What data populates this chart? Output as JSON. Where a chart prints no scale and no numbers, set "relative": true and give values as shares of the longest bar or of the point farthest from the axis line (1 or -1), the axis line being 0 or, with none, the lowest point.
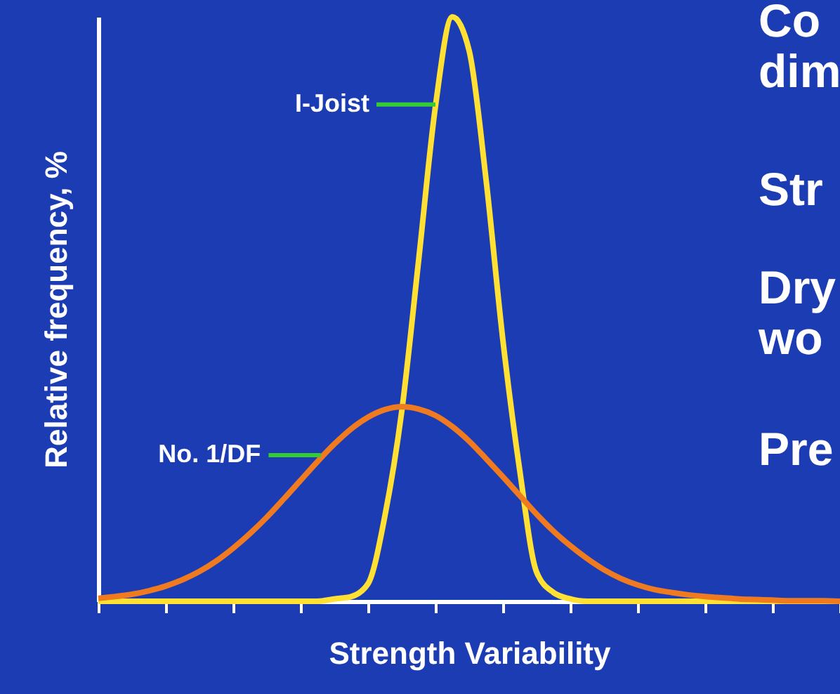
{
  "chart_data": {
    "type": "line",
    "relative": true,
    "xlabel": "Strength Variability",
    "ylabel": "Relative frequency, %",
    "grid": false,
    "categories": [
      null,
      null,
      null,
      null,
      null,
      null,
      null,
      null,
      null,
      null,
      null,
      null,
      null,
      null,
      null,
      null,
      null,
      null,
      null,
      null,
      null,
      null,
      null,
      null,
      null,
      null,
      null,
      null,
      null,
      null,
      null,
      null,
      null,
      null,
      null,
      null,
      null,
      null,
      null,
      null,
      null,
      null,
      null,
      null,
      null
    ],
    "series": [
      {
        "name": "I-Joist",
        "color": "#ffe033",
        "values": [
          0,
          0,
          0,
          0,
          0,
          0,
          0,
          0,
          0,
          0,
          0,
          0,
          0,
          0,
          0.004,
          0.008,
          0.03,
          0.146,
          0.325,
          0.583,
          0.847,
          1,
          0.942,
          0.722,
          0.447,
          0.224,
          0.05,
          0.015,
          0.004,
          0,
          0,
          0,
          0,
          0,
          0,
          0,
          0,
          0,
          0,
          0,
          0,
          0,
          0,
          0,
          0
        ]
      },
      {
        "name": "No. 1/DF",
        "color": "#f07a20",
        "values": [
          0.005,
          0.008,
          0.012,
          0.018,
          0.026,
          0.037,
          0.051,
          0.069,
          0.091,
          0.116,
          0.144,
          0.175,
          0.207,
          0.239,
          0.269,
          0.295,
          0.315,
          0.328,
          0.333,
          0.329,
          0.318,
          0.299,
          0.274,
          0.244,
          0.213,
          0.181,
          0.149,
          0.12,
          0.095,
          0.073,
          0.054,
          0.039,
          0.028,
          0.02,
          0.015,
          0.011,
          0.008,
          0.006,
          0.004,
          0.003,
          0.002,
          0.001,
          0.001,
          0.001,
          0
        ]
      }
    ],
    "annotations": [
      "Co\ndim",
      "Str",
      "Dry\nwo",
      "Pre"
    ]
  }
}
